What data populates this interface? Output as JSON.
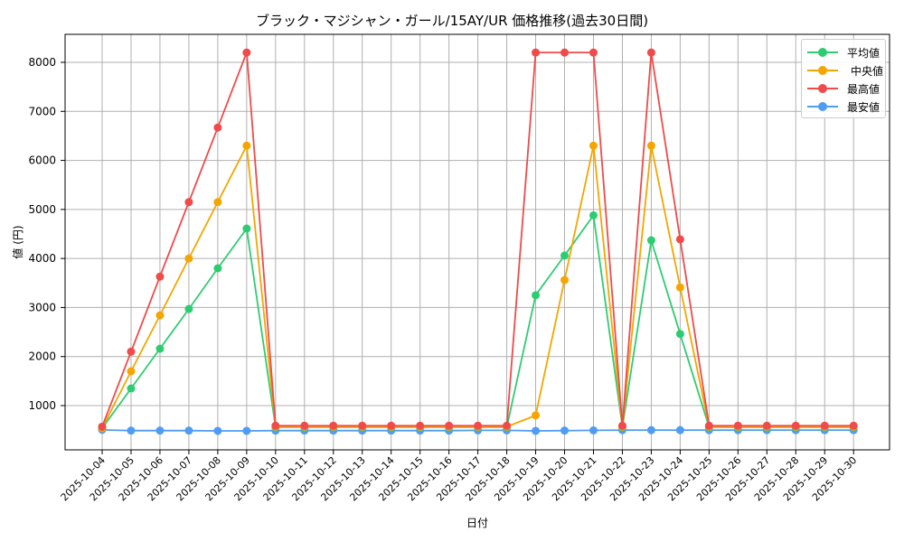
{
  "chart_data": {
    "type": "line",
    "title": "ブラック・マジシャン・ガール/15AY/UR 価格推移(過去30日間)",
    "xlabel": "日付",
    "ylabel": "値 (円)",
    "x": [
      "2025-10-04",
      "2025-10-05",
      "2025-10-06",
      "2025-10-07",
      "2025-10-08",
      "2025-10-09",
      "2025-10-10",
      "2025-10-11",
      "2025-10-12",
      "2025-10-13",
      "2025-10-14",
      "2025-10-15",
      "2025-10-16",
      "2025-10-17",
      "2025-10-18",
      "2025-10-19",
      "2025-10-20",
      "2025-10-21",
      "2025-10-22",
      "2025-10-23",
      "2025-10-24",
      "2025-10-25",
      "2025-10-26",
      "2025-10-27",
      "2025-10-28",
      "2025-10-29",
      "2025-10-30"
    ],
    "yticks": [
      1000,
      2000,
      3000,
      4000,
      5000,
      6000,
      7000,
      8000
    ],
    "ylim": [
      100,
      8600
    ],
    "grid": true,
    "legend_position": "upper right",
    "series": [
      {
        "name": "平均値",
        "color": "#2ecc71",
        "values": [
          540,
          1350,
          2160,
          2970,
          3800,
          4610,
          560,
          560,
          560,
          560,
          560,
          560,
          560,
          560,
          560,
          3250,
          4060,
          4880,
          560,
          4370,
          2460,
          560,
          560,
          560,
          560,
          560,
          560
        ]
      },
      {
        "name": "中央値",
        "color": "#f5a500",
        "values": [
          540,
          1700,
          2840,
          4000,
          5150,
          6300,
          570,
          570,
          570,
          570,
          570,
          570,
          570,
          570,
          570,
          800,
          3560,
          6300,
          570,
          6300,
          3410,
          570,
          570,
          570,
          570,
          570,
          570
        ]
      },
      {
        "name": "最高値",
        "color": "#f04a4a",
        "values": [
          570,
          2100,
          3630,
          5150,
          6670,
          8200,
          590,
          590,
          590,
          590,
          590,
          590,
          590,
          590,
          590,
          8200,
          8200,
          8200,
          590,
          8200,
          4390,
          590,
          590,
          590,
          590,
          590,
          590
        ]
      },
      {
        "name": "最安値",
        "color": "#4f9cf5",
        "values": [
          505,
          490,
          490,
          490,
          485,
          485,
          490,
          490,
          490,
          490,
          490,
          490,
          490,
          495,
          495,
          485,
          490,
          495,
          500,
          500,
          500,
          500,
          500,
          500,
          500,
          500,
          500
        ]
      }
    ]
  },
  "legend": {
    "items": [
      {
        "label": "平均値"
      },
      {
        "label": "中央値"
      },
      {
        "label": "最高値"
      },
      {
        "label": "最安値"
      }
    ]
  }
}
